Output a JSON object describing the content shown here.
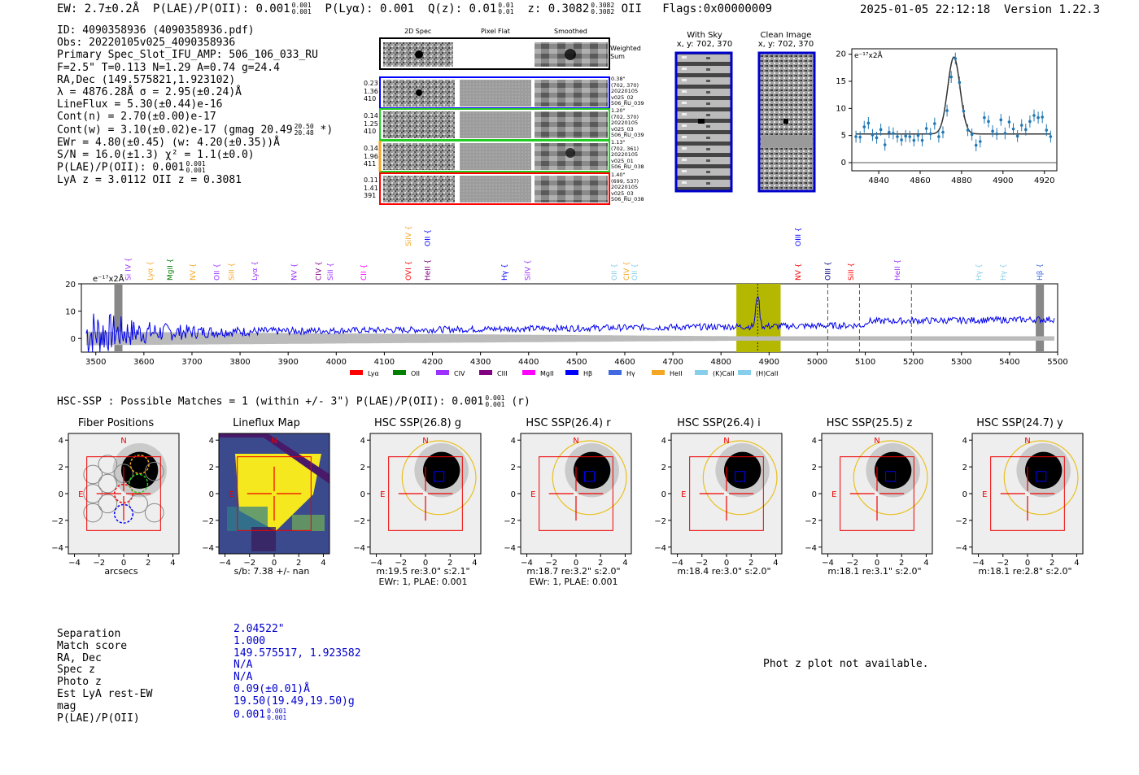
{
  "header": {
    "ew": "EW: 2.7±0.2Å",
    "plae_label": "P(LAE)/P(OII): 0.001",
    "plae_sup": "0.001",
    "plae_sub": "0.001",
    "plya": "P(Lyα): 0.001",
    "qz_label": "Q(z): 0.01",
    "qz_sup": "0.01",
    "qz_sub": "0.01",
    "z_label": "z: 0.3082",
    "z_sup": "0.3082",
    "z_sub": "0.3082",
    "z_line": "OII",
    "flags": "Flags:0x00000009",
    "datetime": "2025-01-05 22:12:18",
    "version": "Version 1.22.3"
  },
  "info": {
    "id": "ID: 4090358936 (4090358936.pdf)",
    "obs": "Obs: 20220105v025_4090358936",
    "primary": "Primary Spec_Slot_IFU_AMP: 506_106_033_RU",
    "fparams": "F=2.5\"  T=0.113  N=1.29  A=0.74  g=24.4",
    "radec": "RA,Dec (149.575821,1.923102)",
    "lambda": "λ = 4876.28Å  σ = 2.95(±0.24)Å",
    "lineflux": "LineFlux = 5.30(±0.44)e-16",
    "contn": "Cont(n) = 2.70(±0.00)e-17",
    "contw_a": "Cont(w) = 3.10(±0.02)e-17 (gmag 20.49",
    "contw_sup": "20.50",
    "contw_sub": "20.48",
    "contw_b": "*)",
    "ewr": "EWr = 4.80(±0.45) (w: 4.20(±0.35))Å",
    "sn": "S/N = 16.0(±1.3)  χ² = 1.1(±0.0)",
    "plae_label": "P(LAE)/P(OII): 0.001",
    "plae_sup": "0.001",
    "plae_sub": "0.001",
    "lyaz": "LyA z = 3.0112  OII z = 0.3081"
  },
  "cutouts": {
    "col_titles": [
      "2D Spec",
      "Pixel Flat",
      "Smoothed"
    ],
    "weighted_sum": "Weighted Sum",
    "rows": [
      {
        "left": [
          "0.23",
          "1.36",
          "410"
        ],
        "right": [
          "0.38\"",
          "(702, 370)",
          "20220105",
          "v025_02",
          "506_RU_039"
        ],
        "color": "#0000ff"
      },
      {
        "left": [
          "0.14",
          "1.25",
          "410"
        ],
        "right": [
          "1.20\"",
          "(702, 370)",
          "20220105",
          "v025_03",
          "506_RU_039"
        ],
        "color": "#22cc22"
      },
      {
        "left": [
          "0.14",
          "1.96",
          "411"
        ],
        "right": [
          "1.13\"",
          "(702, 361)",
          "20220105",
          "v025_01",
          "506_RU_038"
        ],
        "color": "#f5a623"
      },
      {
        "left": [
          "0.11",
          "1.41",
          "391"
        ],
        "right": [
          "1.40\"",
          "(699, 537)",
          "20220105",
          "v025_03",
          "506_RU_038"
        ],
        "color": "#ff0000"
      }
    ],
    "with_sky": "With Sky",
    "with_sky_xy": "x, y: 702, 370",
    "clean_image": "Clean Image",
    "clean_image_xy": "x, y: 702, 370"
  },
  "line_fit_chart": {
    "type": "scatter",
    "ylabel": "e⁻¹⁷x2Å",
    "xlim": [
      4827,
      4926
    ],
    "ylim": [
      -1.5,
      21
    ],
    "xticks": [
      4840,
      4860,
      4880,
      4900,
      4920
    ],
    "yticks": [
      0,
      5,
      10,
      15,
      20
    ],
    "x": [
      4829,
      4831,
      4833,
      4835,
      4837,
      4839,
      4841,
      4843,
      4845,
      4847,
      4849,
      4851,
      4853,
      4855,
      4857,
      4859,
      4861,
      4863,
      4865,
      4867,
      4869,
      4871,
      4873,
      4875,
      4877,
      4879,
      4881,
      4883,
      4885,
      4887,
      4889,
      4891,
      4893,
      4895,
      4897,
      4899,
      4901,
      4903,
      4905,
      4907,
      4909,
      4911,
      4913,
      4915,
      4917,
      4919,
      4921,
      4923
    ],
    "y": [
      4.8,
      4.7,
      6.6,
      7.3,
      5.1,
      4.6,
      6.1,
      3.3,
      5.6,
      5.4,
      4.8,
      4.2,
      4.9,
      4.8,
      4.1,
      5.0,
      4.1,
      6.3,
      5.3,
      7.2,
      4.8,
      5.6,
      9.6,
      15.8,
      19.2,
      14.8,
      9.5,
      6.0,
      5.2,
      3.2,
      3.9,
      8.3,
      7.6,
      5.8,
      5.3,
      7.9,
      5.4,
      7.5,
      6.2,
      4.9,
      6.9,
      6.1,
      7.6,
      8.7,
      8.3,
      8.4,
      6.0,
      4.8
    ],
    "fit_baseline": 5.3,
    "fit_peak": 19.5,
    "fit_center": 4876.28,
    "fit_sigma": 2.95
  },
  "spectrum_chart": {
    "type": "line",
    "ylabel_unit": "e⁻¹⁷x2Å",
    "xlim": [
      3470,
      5500
    ],
    "ylim": [
      -5,
      20
    ],
    "xticks": [
      3500,
      3600,
      3700,
      3800,
      3900,
      4000,
      4100,
      4200,
      4300,
      4400,
      4500,
      4600,
      4700,
      4800,
      4900,
      5000,
      5100,
      5200,
      5300,
      5400,
      5500
    ],
    "yticks": [
      0,
      10,
      20
    ],
    "highlight_range": [
      4832,
      4924
    ],
    "peak_wavelength": 4876.28,
    "dashed_lines": [
      5022,
      5088,
      5196
    ],
    "gray_bars": [
      3547,
      5463
    ],
    "lines": [
      {
        "name": "Si IV",
        "w": 3567,
        "color": "#9b30ff",
        "row": "low"
      },
      {
        "name": "Lyα",
        "w": 3613,
        "color": "#f5a623",
        "row": "low"
      },
      {
        "name": "MgII",
        "w": 3654,
        "color": "#008000",
        "row": "low"
      },
      {
        "name": "NV",
        "w": 3702,
        "color": "#f5a623",
        "row": "low"
      },
      {
        "name": "OII",
        "w": 3752,
        "color": "#9b30ff",
        "row": "low"
      },
      {
        "name": "SiII",
        "w": 3782,
        "color": "#f5a623",
        "row": "low"
      },
      {
        "name": "Lyα",
        "w": 3830,
        "color": "#9b30ff",
        "row": "low"
      },
      {
        "name": "NV",
        "w": 3912,
        "color": "#9b30ff",
        "row": "low"
      },
      {
        "name": "CIV",
        "w": 3963,
        "color": "#800080",
        "row": "low"
      },
      {
        "name": "SiII",
        "w": 3988,
        "color": "#9b30ff",
        "row": "low"
      },
      {
        "name": "CII",
        "w": 4057,
        "color": "#ff00ff",
        "row": "low"
      },
      {
        "name": "OVI",
        "w": 4150,
        "color": "#ff0000",
        "row": "low"
      },
      {
        "name": "SiIV",
        "w": 4150,
        "color": "#f5a623",
        "row": "high"
      },
      {
        "name": "HeII",
        "w": 4190,
        "color": "#800080",
        "row": "low"
      },
      {
        "name": "OII",
        "w": 4190,
        "color": "#0000ff",
        "row": "high"
      },
      {
        "name": "Hγ",
        "w": 4350,
        "color": "#0000ff",
        "row": "low"
      },
      {
        "name": "SiIV",
        "w": 4398,
        "color": "#9b30ff",
        "row": "low"
      },
      {
        "name": "OII",
        "w": 4578,
        "color": "#87ceeb",
        "row": "low"
      },
      {
        "name": "CIV",
        "w": 4603,
        "color": "#f5a623",
        "row": "low"
      },
      {
        "name": "OII",
        "w": 4620,
        "color": "#87ceeb",
        "row": "low"
      },
      {
        "name": "OIII",
        "w": 4960,
        "color": "#0000ff",
        "row": "high"
      },
      {
        "name": "NV",
        "w": 4960,
        "color": "#ff0000",
        "row": "low"
      },
      {
        "name": "OIII",
        "w": 5022,
        "color": "#000080",
        "row": "low"
      },
      {
        "name": "SiII",
        "w": 5070,
        "color": "#ff0000",
        "row": "low"
      },
      {
        "name": "HeII",
        "w": 5167,
        "color": "#9b30ff",
        "row": "low"
      },
      {
        "name": "Hγ",
        "w": 5336,
        "color": "#87ceeb",
        "row": "low"
      },
      {
        "name": "Hγ",
        "w": 5387,
        "color": "#87ceeb",
        "row": "low"
      },
      {
        "name": "Hβ",
        "w": 5463,
        "color": "#4169e1",
        "row": "low"
      }
    ],
    "legend": [
      {
        "label": "Lyα",
        "color": "#ff0000"
      },
      {
        "label": "OII",
        "color": "#008000"
      },
      {
        "label": "CIV",
        "color": "#9b30ff"
      },
      {
        "label": "CIII",
        "color": "#800080"
      },
      {
        "label": "MgII",
        "color": "#ff00ff"
      },
      {
        "label": "Hβ",
        "color": "#0000ff"
      },
      {
        "label": "Hγ",
        "color": "#4169e1"
      },
      {
        "label": "HeII",
        "color": "#f5a623"
      },
      {
        "label": "(K)CaII",
        "color": "#87ceeb"
      },
      {
        "label": "(H)CaII",
        "color": "#87ceeb"
      }
    ]
  },
  "hsc": {
    "title_a": "HSC-SSP : Possible Matches = 1 (within +/- 3\")  P(LAE)/P(OII): 0.001",
    "title_sup": "0.001",
    "title_sub": "0.001",
    "title_b": "(r)",
    "panels": [
      {
        "title": "Fiber Positions",
        "cap1": "arcsecs",
        "cap2": ""
      },
      {
        "title": "Lineflux Map",
        "cap1": "s/b: 7.38 +/- nan",
        "cap2": ""
      },
      {
        "title": "HSC SSP(26.8) g",
        "cap1": "m:19.5  re:3.0\"  s:2.1\"",
        "cap2": "EWr: 1, PLAE: 0.001"
      },
      {
        "title": "HSC SSP(26.4) r",
        "cap1": "m:18.7  re:3.2\"  s:2.0\"",
        "cap2": "EWr: 1, PLAE: 0.001"
      },
      {
        "title": "HSC SSP(26.4) i",
        "cap1": "m:18.4  re:3.0\"  s:2.0\"",
        "cap2": ""
      },
      {
        "title": "HSC SSP(25.5) z",
        "cap1": "m:18.1  re:3.1\"  s:2.0\"",
        "cap2": ""
      },
      {
        "title": "HSC SSP(24.7) y",
        "cap1": "m:18.1  re:2.8\"  s:2.0\"",
        "cap2": ""
      }
    ],
    "axis_ticks": [
      "−4",
      "−2",
      "0",
      "2",
      "4"
    ],
    "north": "N",
    "east": "E"
  },
  "match_table": {
    "labels": [
      "Separation",
      "Match score",
      "RA, Dec",
      "Spec z",
      "Photo z",
      "Est LyA rest-EW",
      "mag",
      "P(LAE)/P(OII)"
    ],
    "values": [
      "2.04522\"",
      "1.000",
      "149.575517, 1.923582",
      "N/A",
      "N/A",
      "0.09(±0.01)Å",
      "19.50(19.49,19.50)g",
      "0.001"
    ],
    "plae_sup": "0.001",
    "plae_sub": "0.001"
  },
  "photz_message": "Phot z plot not available."
}
